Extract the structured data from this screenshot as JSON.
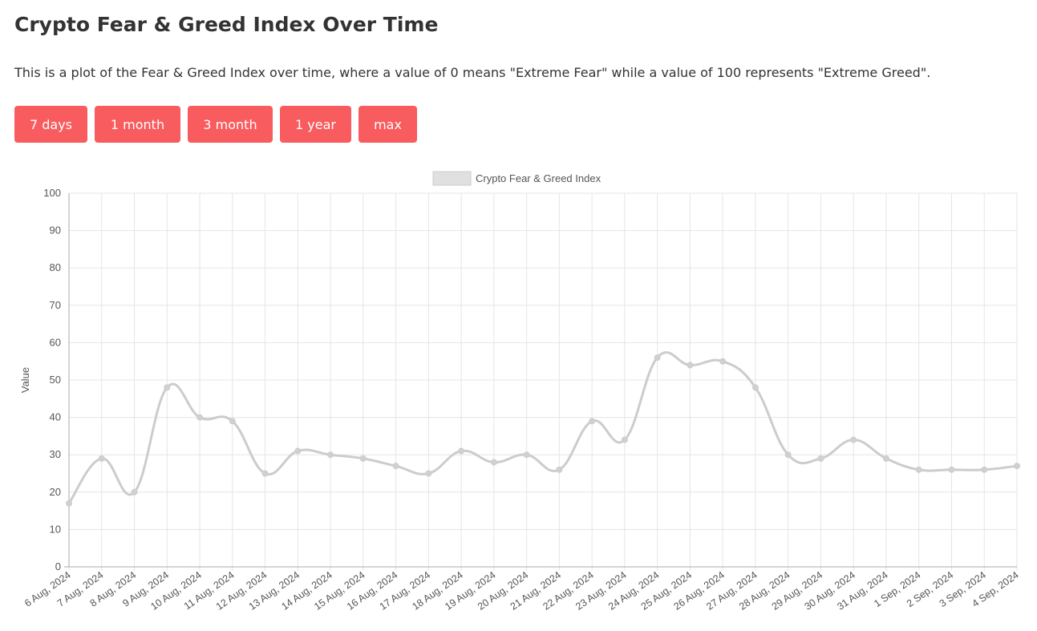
{
  "page": {
    "title": "Crypto Fear & Greed Index Over Time",
    "description": "This is a plot of the Fear & Greed Index over time, where a value of 0 means \"Extreme Fear\" while a value of 100 represents \"Extreme Greed\"."
  },
  "buttons": [
    "7 days",
    "1 month",
    "3 month",
    "1 year",
    "max"
  ],
  "colors": {
    "button_bg": "#f85c5f",
    "button_text": "#ffffff",
    "line": "#cccccc",
    "grid": "#e5e5e5"
  },
  "chart_data": {
    "type": "line",
    "title": "",
    "legend": "Crypto Fear & Greed Index",
    "legend_position": "top-center",
    "xlabel": "",
    "ylabel": "Value",
    "ylim": [
      0,
      100
    ],
    "yticks": [
      0,
      10,
      20,
      30,
      40,
      50,
      60,
      70,
      80,
      90,
      100
    ],
    "grid": true,
    "categories": [
      "6 Aug, 2024",
      "7 Aug, 2024",
      "8 Aug, 2024",
      "9 Aug, 2024",
      "10 Aug, 2024",
      "11 Aug, 2024",
      "12 Aug, 2024",
      "13 Aug, 2024",
      "14 Aug, 2024",
      "15 Aug, 2024",
      "16 Aug, 2024",
      "17 Aug, 2024",
      "18 Aug, 2024",
      "19 Aug, 2024",
      "20 Aug, 2024",
      "21 Aug, 2024",
      "22 Aug, 2024",
      "23 Aug, 2024",
      "24 Aug, 2024",
      "25 Aug, 2024",
      "26 Aug, 2024",
      "27 Aug, 2024",
      "28 Aug, 2024",
      "29 Aug, 2024",
      "30 Aug, 2024",
      "31 Aug, 2024",
      "1 Sep, 2024",
      "2 Sep, 2024",
      "3 Sep, 2024",
      "4 Sep, 2024"
    ],
    "series": [
      {
        "name": "Crypto Fear & Greed Index",
        "values": [
          17,
          29,
          20,
          48,
          40,
          39,
          25,
          31,
          30,
          29,
          27,
          25,
          31,
          28,
          30,
          26,
          39,
          34,
          56,
          54,
          55,
          48,
          30,
          29,
          34,
          29,
          26,
          26,
          26,
          27
        ]
      }
    ]
  }
}
